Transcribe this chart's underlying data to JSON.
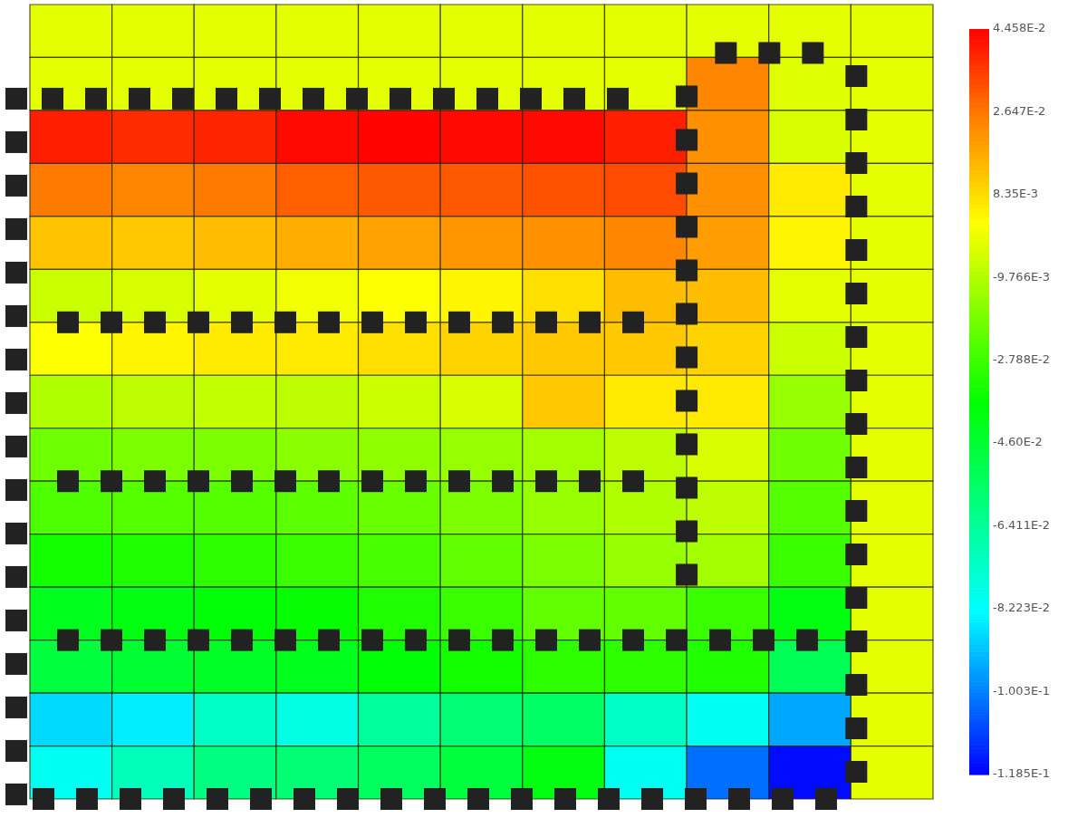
{
  "chart_data": {
    "type": "heatmap",
    "tick_labels": false,
    "categories": [
      null,
      null,
      null,
      null,
      null,
      null,
      null,
      null,
      null,
      null,
      null
    ],
    "y_categories": [
      null,
      null,
      null,
      null,
      null,
      null,
      null,
      null,
      null,
      null,
      null,
      null,
      null,
      null,
      null
    ],
    "cells": [
      [
        -0.002,
        -0.002,
        -0.002,
        -0.002,
        -0.002,
        -0.002,
        -0.002,
        -0.002,
        -0.002,
        -0.002,
        -0.002
      ],
      [
        -0.002,
        -0.002,
        -0.002,
        -0.002,
        -0.002,
        -0.002,
        -0.002,
        -0.002,
        0.024,
        -0.003,
        -0.002
      ],
      [
        0.04,
        0.038,
        0.039,
        0.043,
        0.044,
        0.043,
        0.043,
        0.04,
        0.022,
        -0.004,
        -0.002
      ],
      [
        0.026,
        0.024,
        0.026,
        0.03,
        0.031,
        0.031,
        0.032,
        0.033,
        0.022,
        0.006,
        -0.002
      ],
      [
        0.013,
        0.012,
        0.014,
        0.017,
        0.019,
        0.021,
        0.022,
        0.024,
        0.02,
        0.004,
        -0.002
      ],
      [
        -0.006,
        -0.004,
        -0.002,
        0.0,
        0.002,
        0.004,
        0.008,
        0.014,
        0.014,
        -0.002,
        -0.002
      ],
      [
        0.002,
        0.004,
        0.006,
        0.006,
        0.008,
        0.01,
        0.012,
        0.012,
        0.01,
        -0.006,
        -0.002
      ],
      [
        -0.01,
        -0.008,
        -0.007,
        -0.008,
        -0.006,
        -0.004,
        0.012,
        0.006,
        0.006,
        -0.014,
        -0.002
      ],
      [
        -0.02,
        -0.018,
        -0.018,
        -0.016,
        -0.015,
        -0.014,
        -0.012,
        -0.008,
        -0.004,
        -0.02,
        -0.002
      ],
      [
        -0.025,
        -0.024,
        -0.024,
        -0.023,
        -0.021,
        -0.018,
        -0.014,
        -0.01,
        -0.008,
        -0.024,
        -0.002
      ],
      [
        -0.034,
        -0.032,
        -0.03,
        -0.028,
        -0.026,
        -0.022,
        -0.018,
        -0.014,
        -0.012,
        -0.028,
        -0.002
      ],
      [
        -0.042,
        -0.04,
        -0.038,
        -0.036,
        -0.032,
        -0.028,
        -0.022,
        -0.022,
        -0.028,
        -0.04,
        -0.002
      ],
      [
        -0.048,
        -0.046,
        -0.044,
        -0.042,
        -0.038,
        -0.034,
        -0.03,
        -0.03,
        -0.032,
        -0.052,
        -0.002
      ],
      [
        -0.088,
        -0.085,
        -0.072,
        -0.078,
        -0.065,
        -0.058,
        -0.055,
        -0.072,
        -0.08,
        -0.095,
        -0.002
      ],
      [
        -0.08,
        -0.07,
        -0.06,
        -0.058,
        -0.054,
        -0.048,
        -0.04,
        -0.08,
        -0.103,
        -0.117,
        -0.002
      ]
    ],
    "clim": [
      -0.1185,
      0.04458
    ],
    "cticks": [
      {
        "value": 0.04458,
        "label": "4.458E-2"
      },
      {
        "value": 0.02647,
        "label": "2.647E-2"
      },
      {
        "value": 0.00835,
        "label": "8.35E-3"
      },
      {
        "value": -0.009766,
        "label": "-9.766E-3"
      },
      {
        "value": -0.02788,
        "label": "-2.788E-2"
      },
      {
        "value": -0.046,
        "label": "-4.60E-2"
      },
      {
        "value": -0.06411,
        "label": "-6.411E-2"
      },
      {
        "value": -0.08223,
        "label": "-8.223E-2"
      },
      {
        "value": -0.1003,
        "label": "-1.003E-1"
      },
      {
        "value": -0.1185,
        "label": "-1.185E-1"
      }
    ]
  }
}
